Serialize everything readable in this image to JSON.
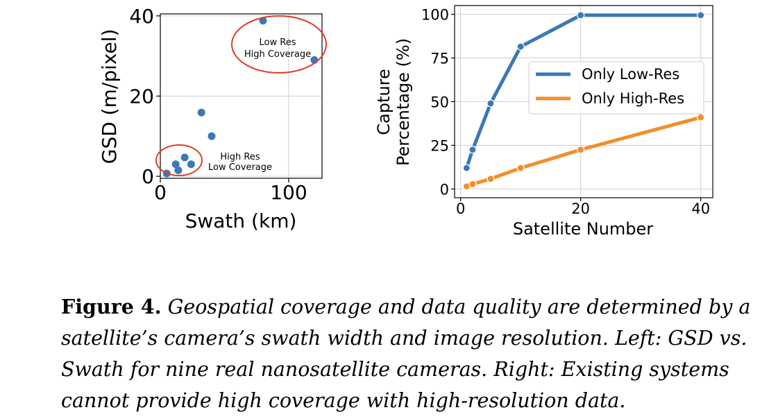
{
  "chart_data": [
    {
      "type": "scatter",
      "xlabel": "Swath (km)",
      "ylabel": "GSD (m/pixel)",
      "xlim": [
        0,
        126
      ],
      "ylim": [
        -0.5,
        40.5
      ],
      "xticks": [
        0,
        100
      ],
      "yticks": [
        0,
        20,
        40
      ],
      "grid": true,
      "color": "#3a78b7",
      "points": [
        {
          "x": 5,
          "y": 0.7
        },
        {
          "x": 12,
          "y": 3
        },
        {
          "x": 14,
          "y": 1.5
        },
        {
          "x": 19,
          "y": 4.7
        },
        {
          "x": 24,
          "y": 3
        },
        {
          "x": 32,
          "y": 15.9
        },
        {
          "x": 40,
          "y": 10
        },
        {
          "x": 80,
          "y": 38.8
        },
        {
          "x": 120,
          "y": 29
        }
      ],
      "annotations": [
        {
          "lines": [
            "Low Res",
            "High Coverage"
          ],
          "circle_color": "#e03c28"
        },
        {
          "lines": [
            "High Res",
            "Low Coverage"
          ],
          "circle_color": "#e03c28"
        }
      ]
    },
    {
      "type": "line",
      "xlabel": "Satellite Number",
      "ylabel": [
        "Capture",
        "Percentage (%)"
      ],
      "xlim": [
        -1,
        42
      ],
      "ylim": [
        -5,
        105
      ],
      "xticks": [
        0,
        20,
        40
      ],
      "yticks": [
        0,
        25,
        50,
        75,
        100
      ],
      "grid": true,
      "legend_position": "center-right",
      "series": [
        {
          "name": "Only Low-Res",
          "color": "#3a78b7",
          "x": [
            1,
            2,
            5,
            10,
            20,
            40
          ],
          "values": [
            12,
            22.5,
            49,
            81.5,
            99.5,
            99.5
          ]
        },
        {
          "name": "Only High-Res",
          "color": "#f28e2b",
          "x": [
            1,
            2,
            5,
            10,
            20,
            40
          ],
          "values": [
            1.5,
            2.8,
            5.8,
            12,
            22.5,
            41
          ]
        }
      ]
    }
  ],
  "caption": {
    "label": "Figure 4.",
    "text": "Geospatial coverage and data quality are determined by a satellite’s camera’s swath width and image resolution. Left: GSD vs. Swath for nine real nanosatellite cameras. Right: Existing systems cannot provide high coverage with high-resolution data."
  }
}
